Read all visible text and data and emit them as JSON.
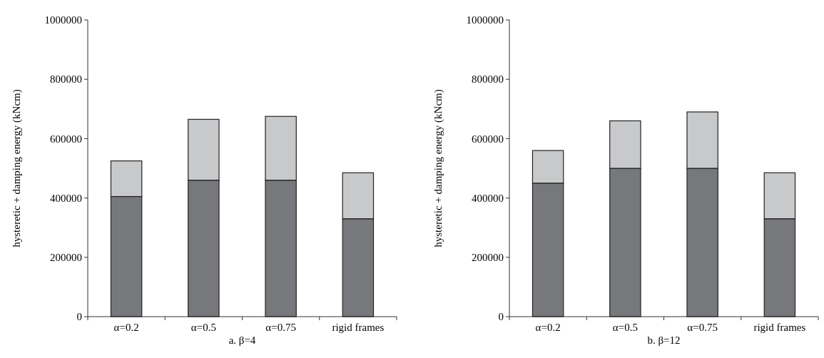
{
  "chart_data": [
    {
      "type": "bar",
      "title": "a. β=4",
      "ylabel": "hysteretic + damping energy (kNcm)",
      "categories": [
        "α=0.2",
        "α=0.5",
        "α=0.75",
        "rigid frames"
      ],
      "stacked": true,
      "series": [
        {
          "color": "#77787c",
          "values": [
            405000,
            460000,
            460000,
            330000
          ]
        },
        {
          "color": "#c8c9cb",
          "values": [
            120000,
            205000,
            215000,
            155000
          ]
        }
      ],
      "ylim": [
        0,
        1000000
      ],
      "yticks": [
        0,
        200000,
        400000,
        600000,
        800000,
        1000000
      ]
    },
    {
      "type": "bar",
      "title": "b. β=12",
      "ylabel": "hysteretic + damping energy (kNcm)",
      "categories": [
        "α=0.2",
        "α=0.5",
        "α=0.75",
        "rigid frames"
      ],
      "stacked": true,
      "series": [
        {
          "color": "#77787c",
          "values": [
            450000,
            500000,
            500000,
            330000
          ]
        },
        {
          "color": "#c8c9cb",
          "values": [
            110000,
            160000,
            190000,
            155000
          ]
        }
      ],
      "ylim": [
        0,
        1000000
      ],
      "yticks": [
        0,
        200000,
        400000,
        600000,
        800000,
        1000000
      ]
    }
  ]
}
